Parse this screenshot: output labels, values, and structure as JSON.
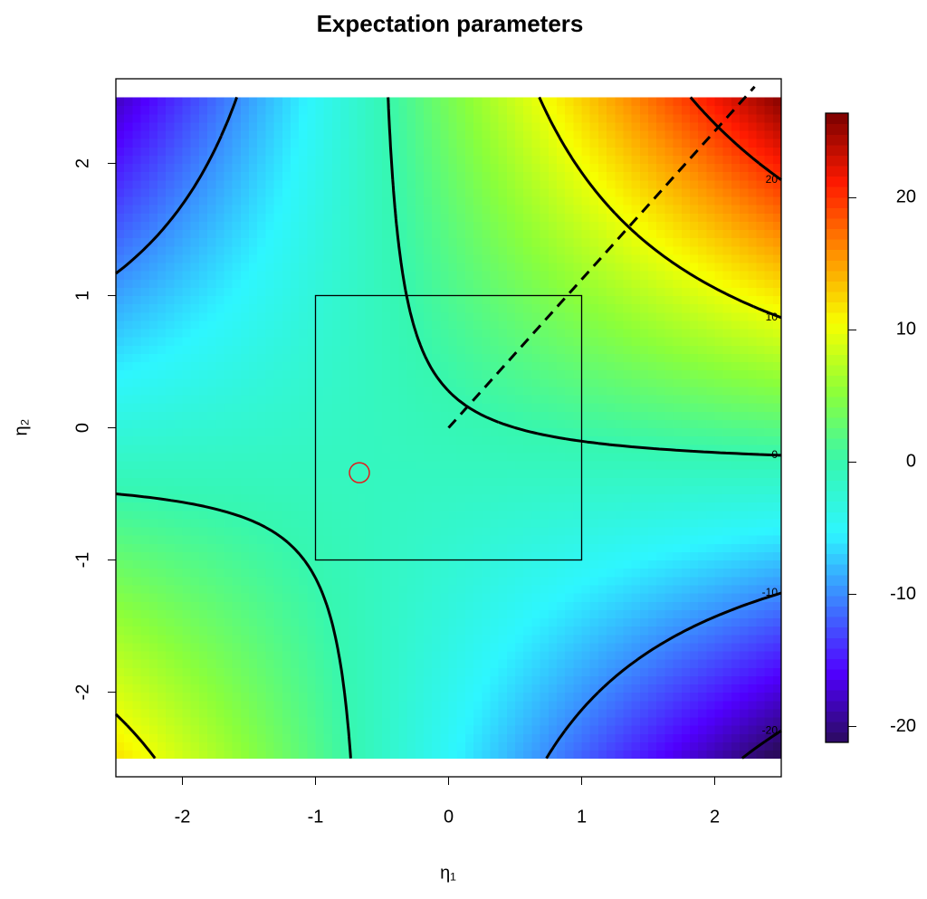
{
  "chart_data": {
    "type": "filled_contour",
    "title": "Expectation parameters",
    "xlabel": "η₁",
    "ylabel": "η₂",
    "grid_x": [
      -2.5,
      0,
      2.5
    ],
    "grid_y": [
      -2.5,
      0,
      2.5
    ],
    "z": [
      [
        12,
        -5,
        -22
      ],
      [
        -3,
        -0.5,
        2
      ],
      [
        -18,
        4,
        26
      ]
    ],
    "xlim": [
      -2.5,
      2.5
    ],
    "ylim": [
      -2.64,
      2.64
    ],
    "xticks": [
      -2,
      -1,
      0,
      1,
      2
    ],
    "yticks": [
      -2,
      -1,
      0,
      1,
      2
    ],
    "zlim": [
      -21.2,
      26.4
    ],
    "zticks": [
      -20,
      -10,
      0,
      10,
      20
    ],
    "colormap": [
      "#2b0b5e",
      "#5000ff",
      "#3d7dff",
      "#2ef6ff",
      "#36f7b0",
      "#8bff3a",
      "#f7ff00",
      "#ff9000",
      "#ff1a00",
      "#7a0000"
    ],
    "contour_levels": [
      -20,
      -10,
      0,
      10,
      20
    ],
    "square": {
      "x": [
        -1,
        1
      ],
      "y": [
        -1,
        1
      ]
    },
    "dashed_line": {
      "x": [
        0,
        2.3
      ],
      "y": [
        0,
        2.58
      ]
    },
    "point": {
      "x": -0.67,
      "y": -0.34,
      "color": "#e31a1c"
    }
  }
}
